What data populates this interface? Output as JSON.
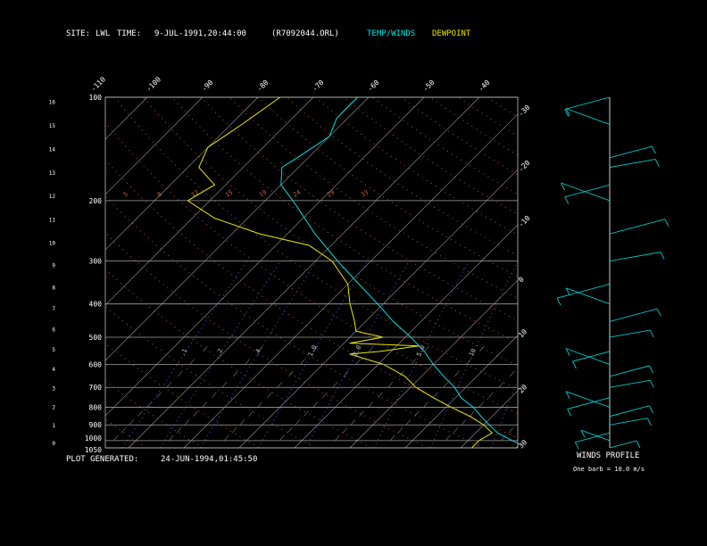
{
  "header": {
    "site_label": "SITE:",
    "site": "LWL",
    "time_label": "TIME:",
    "time": "9-JUL-1991,20:44:00",
    "file": "(R7092044.ORL)",
    "temp_winds": "TEMP/WINDS",
    "dewpoint": "DEWPOINT"
  },
  "footer": {
    "plot_generated_label": "PLOT GENERATED:",
    "plot_generated": "24-JUN-1994,01:45:50",
    "winds_profile": "WINDS PROFILE",
    "barb_note": "One barb = 10.0 m/s"
  },
  "colors": {
    "temp": "#00e0e0",
    "dewpoint": "#e8e800",
    "isobar": "#a0a0a0",
    "mixing_ratio": "#4060e0",
    "adiabat": "#c06040",
    "frame": "#c0c0c0"
  },
  "chart_data": {
    "type": "line",
    "subtype": "skew-T log-P sounding",
    "pressure_axis_label": [
      "100",
      "200",
      "300",
      "400",
      "500",
      "600",
      "700",
      "800",
      "900",
      "1000",
      "1050"
    ],
    "pressure_levels": [
      100,
      200,
      300,
      400,
      500,
      600,
      700,
      800,
      900,
      1000,
      1050
    ],
    "height_km_ticks": [
      "0",
      "1",
      "2",
      "3",
      "4",
      "5",
      "6",
      "7",
      "8",
      "9",
      "10",
      "11",
      "12",
      "13",
      "14",
      "15",
      "16"
    ],
    "top_temp_labels": [
      "-110",
      "-100",
      "-90",
      "-80",
      "-70",
      "-60",
      "-50",
      "-40"
    ],
    "right_temp_labels": [
      "-30",
      "-20",
      "-10",
      "0",
      "10",
      "20",
      "30"
    ],
    "isotherms": [
      -110,
      -100,
      -90,
      -80,
      -70,
      -60,
      -50,
      -40,
      -30,
      -20,
      -10,
      0,
      10,
      20,
      30
    ],
    "mixing_ratio_labels": [
      ".1",
      ".2",
      ".4",
      "1.0",
      "2.0",
      "5.0",
      "10",
      "20"
    ],
    "adiabat_top_labels": [
      "5",
      "8",
      "12",
      "15",
      "19",
      "24",
      "29",
      "33"
    ],
    "series": [
      {
        "name": "TEMP/WINDS",
        "pressure": [
          1050,
          1000,
          950,
          900,
          850,
          800,
          750,
          700,
          650,
          600,
          550,
          500,
          450,
          400,
          350,
          300,
          250,
          200,
          180,
          160,
          150,
          130,
          115,
          100
        ],
        "temperature": [
          32,
          28,
          24,
          21,
          18,
          15,
          11,
          8,
          4,
          0,
          -4,
          -9,
          -15,
          -21,
          -28,
          -36,
          -45,
          -55,
          -60,
          -63,
          -62,
          -60,
          -62,
          -62
        ]
      },
      {
        "name": "DEWPOINT",
        "pressure": [
          1050,
          1000,
          950,
          900,
          850,
          800,
          750,
          700,
          650,
          600,
          560,
          550,
          530,
          520,
          500,
          480,
          450,
          400,
          350,
          300,
          270,
          250,
          225,
          200,
          180,
          160,
          140,
          120,
          100
        ],
        "dewpoint": [
          22,
          22,
          23,
          20,
          16,
          11,
          6,
          1,
          -3,
          -9,
          -17,
          -12,
          -6,
          -19,
          -14,
          -20,
          -22,
          -26,
          -30,
          -37,
          -44,
          -55,
          -66,
          -74,
          -72,
          -78,
          -80,
          -78,
          -76
        ]
      }
    ],
    "winds": {
      "pressure": [
        1050,
        1000,
        950,
        900,
        850,
        800,
        750,
        700,
        650,
        600,
        550,
        500,
        450,
        400,
        350,
        300,
        250,
        200,
        180,
        160,
        150,
        120,
        100
      ],
      "speed_ms": [
        5,
        6,
        8,
        9,
        10,
        12,
        11,
        10,
        10,
        12,
        9,
        10,
        13,
        12,
        15,
        14,
        16,
        14,
        12,
        12,
        11,
        12,
        12
      ]
    }
  }
}
